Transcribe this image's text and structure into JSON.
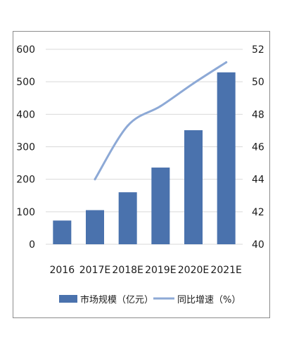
{
  "chart_data": {
    "type": "bar",
    "categories": [
      "2016",
      "2017E",
      "2018E",
      "2019E",
      "2020E",
      "2021E"
    ],
    "series": [
      {
        "name": "市场规模（亿元）",
        "type": "bar",
        "axis": "left",
        "color": "#4a72ad",
        "values": [
          73,
          105,
          160,
          236,
          351,
          529
        ]
      },
      {
        "name": "同比增速（%）",
        "type": "line",
        "axis": "right",
        "color": "#8da9d6",
        "values": [
          null,
          44,
          47.3,
          48.5,
          49.9,
          51.2
        ]
      }
    ],
    "y_left": {
      "min": 0,
      "max": 600,
      "ticks": [
        "0",
        "100",
        "200",
        "300",
        "400",
        "500",
        "600"
      ]
    },
    "y_right": {
      "min": 40,
      "max": 52,
      "ticks": [
        "40",
        "42",
        "44",
        "46",
        "48",
        "50",
        "52"
      ]
    },
    "grid": "horizontal",
    "legend_position": "bottom"
  }
}
